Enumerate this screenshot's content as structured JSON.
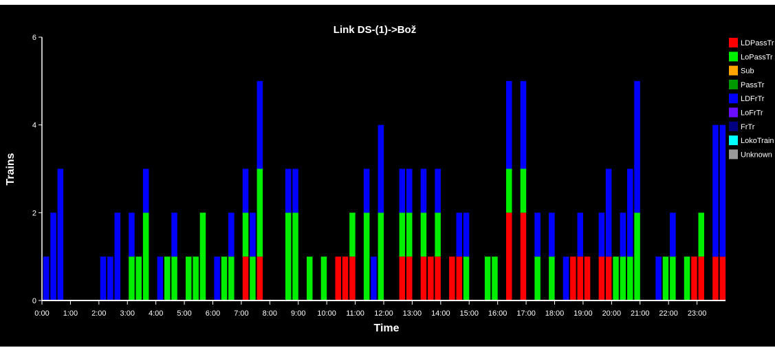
{
  "chart_data": {
    "type": "bar",
    "stacked": true,
    "title": "Link DS-(1)->Bož",
    "xlabel": "Time",
    "ylabel": "Trains",
    "ylim": [
      0,
      6
    ],
    "y_ticks": [
      "0",
      "2",
      "4",
      "6"
    ],
    "x_ticks": [
      "0:00",
      "1:00",
      "2:00",
      "3:00",
      "4:00",
      "5:00",
      "6:00",
      "7:00",
      "8:00",
      "9:00",
      "10:00",
      "11:00",
      "12:00",
      "13:00",
      "14:00",
      "15:00",
      "16:00",
      "17:00",
      "18:00",
      "19:00",
      "20:00",
      "21:00",
      "22:00",
      "23:00"
    ],
    "xlim_hours": [
      0,
      24
    ],
    "bin_minutes": 15,
    "legend_position": "right",
    "background": "#000000",
    "series": [
      {
        "name": "LDPassTr",
        "color": "#ff0000"
      },
      {
        "name": "LoPassTr",
        "color": "#00ee00"
      },
      {
        "name": "Sub",
        "color": "#ffa500"
      },
      {
        "name": "PassTr",
        "color": "#009900"
      },
      {
        "name": "LDFrTr",
        "color": "#0000ff"
      },
      {
        "name": "LoFrTr",
        "color": "#6a0dff"
      },
      {
        "name": "FrTr",
        "color": "#000080"
      },
      {
        "name": "LokoTrain",
        "color": "#00ffff"
      },
      {
        "name": "Unknown",
        "color": "#999999"
      }
    ],
    "bars": [
      {
        "t": "0:00",
        "LDFrTr": 1
      },
      {
        "t": "0:15",
        "LDFrTr": 2
      },
      {
        "t": "0:30",
        "LDFrTr": 3
      },
      {
        "t": "2:00",
        "LDFrTr": 1
      },
      {
        "t": "2:15",
        "LDFrTr": 1
      },
      {
        "t": "2:30",
        "LDFrTr": 2
      },
      {
        "t": "3:00",
        "LoPassTr": 1,
        "LDFrTr": 1
      },
      {
        "t": "3:15",
        "LoPassTr": 1
      },
      {
        "t": "3:30",
        "LoPassTr": 2,
        "LDFrTr": 1
      },
      {
        "t": "4:00",
        "LDFrTr": 1
      },
      {
        "t": "4:15",
        "LoPassTr": 1
      },
      {
        "t": "4:30",
        "LoPassTr": 1,
        "LDFrTr": 1
      },
      {
        "t": "5:00",
        "LoPassTr": 1
      },
      {
        "t": "5:15",
        "LoPassTr": 1
      },
      {
        "t": "5:30",
        "LoPassTr": 2
      },
      {
        "t": "6:00",
        "LDFrTr": 1
      },
      {
        "t": "6:15",
        "LoPassTr": 1
      },
      {
        "t": "6:30",
        "LoPassTr": 1,
        "LDFrTr": 1
      },
      {
        "t": "7:00",
        "LDPassTr": 1,
        "LoPassTr": 1,
        "LDFrTr": 1
      },
      {
        "t": "7:15",
        "LoPassTr": 1,
        "LDFrTr": 1
      },
      {
        "t": "7:30",
        "LDPassTr": 1,
        "LoPassTr": 2,
        "LDFrTr": 2
      },
      {
        "t": "8:30",
        "LoPassTr": 2,
        "LDFrTr": 1
      },
      {
        "t": "8:45",
        "LoPassTr": 2,
        "LDFrTr": 1
      },
      {
        "t": "9:15",
        "LoPassTr": 1
      },
      {
        "t": "9:45",
        "LoPassTr": 1
      },
      {
        "t": "10:15",
        "LDPassTr": 1
      },
      {
        "t": "10:30",
        "LDPassTr": 1
      },
      {
        "t": "10:45",
        "LDPassTr": 1,
        "LoPassTr": 1
      },
      {
        "t": "11:15",
        "LoPassTr": 2,
        "LDFrTr": 1
      },
      {
        "t": "11:30",
        "LDFrTr": 1
      },
      {
        "t": "11:45",
        "LoPassTr": 2,
        "LDFrTr": 2
      },
      {
        "t": "12:30",
        "LDPassTr": 1,
        "LoPassTr": 1,
        "LDFrTr": 1
      },
      {
        "t": "12:45",
        "LDPassTr": 1,
        "LoPassTr": 1,
        "LDFrTr": 1
      },
      {
        "t": "13:15",
        "LDPassTr": 1,
        "LoPassTr": 1,
        "LDFrTr": 1
      },
      {
        "t": "13:30",
        "LDPassTr": 1
      },
      {
        "t": "13:45",
        "LDPassTr": 1,
        "LoPassTr": 1,
        "LDFrTr": 1
      },
      {
        "t": "14:15",
        "LDPassTr": 1
      },
      {
        "t": "14:30",
        "LDPassTr": 1,
        "LDFrTr": 1
      },
      {
        "t": "14:45",
        "LoPassTr": 1,
        "LDFrTr": 1
      },
      {
        "t": "15:30",
        "LoPassTr": 1
      },
      {
        "t": "15:45",
        "LoPassTr": 1
      },
      {
        "t": "16:15",
        "LDPassTr": 2,
        "LoPassTr": 1,
        "LDFrTr": 2
      },
      {
        "t": "16:45",
        "LDPassTr": 2,
        "LoPassTr": 1,
        "LDFrTr": 2
      },
      {
        "t": "17:15",
        "LoPassTr": 1,
        "LDFrTr": 1
      },
      {
        "t": "17:45",
        "LoPassTr": 1,
        "LDFrTr": 1
      },
      {
        "t": "18:15",
        "LDFrTr": 1
      },
      {
        "t": "18:30",
        "LDPassTr": 1
      },
      {
        "t": "18:45",
        "LDPassTr": 1,
        "LDFrTr": 1
      },
      {
        "t": "19:00",
        "LDPassTr": 1
      },
      {
        "t": "19:30",
        "LDPassTr": 1,
        "LDFrTr": 1
      },
      {
        "t": "19:45",
        "LDPassTr": 1,
        "LDFrTr": 2
      },
      {
        "t": "20:00",
        "LoPassTr": 1
      },
      {
        "t": "20:15",
        "LoPassTr": 1,
        "LDFrTr": 1
      },
      {
        "t": "20:30",
        "LoPassTr": 1,
        "LDFrTr": 2
      },
      {
        "t": "20:45",
        "LoPassTr": 2,
        "LDFrTr": 3
      },
      {
        "t": "21:30",
        "LDFrTr": 1
      },
      {
        "t": "21:45",
        "LoPassTr": 1
      },
      {
        "t": "22:00",
        "LoPassTr": 1,
        "LDFrTr": 1
      },
      {
        "t": "22:30",
        "LoPassTr": 1
      },
      {
        "t": "22:45",
        "LDPassTr": 1
      },
      {
        "t": "23:00",
        "LDPassTr": 1,
        "LoPassTr": 1
      },
      {
        "t": "23:30",
        "LDPassTr": 1,
        "LDFrTr": 3
      },
      {
        "t": "23:45",
        "LDPassTr": 1,
        "LDFrTr": 3
      }
    ]
  }
}
